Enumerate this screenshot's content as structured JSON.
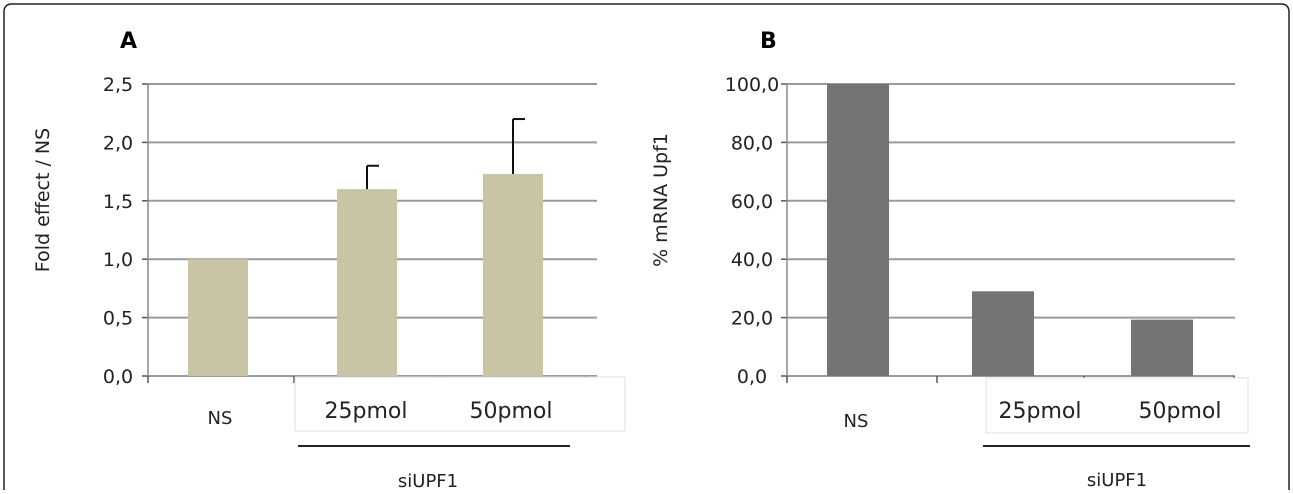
{
  "chart_data": [
    {
      "type": "bar",
      "panel_label": "A",
      "ylabel": "Fold  effect / NS",
      "categories": [
        "NS",
        "25pmol",
        "50pmol"
      ],
      "values": [
        1.0,
        1.6,
        1.73
      ],
      "error_upper": [
        0,
        0.2,
        0.47
      ],
      "ylim": [
        0,
        2.5
      ],
      "yticks": [
        0,
        0.5,
        1.0,
        1.5,
        2.0,
        2.5
      ],
      "ytick_labels": [
        "0,0",
        "0,5",
        "1,0",
        "1,5",
        "2,0",
        "2,5"
      ],
      "group_label": "siUPF1",
      "bar_color": "#c8c4a4",
      "grid": true
    },
    {
      "type": "bar",
      "panel_label": "B",
      "ylabel": "% mRNA Upf1",
      "categories": [
        "NS",
        "25pmol",
        "50pmol"
      ],
      "values": [
        100.0,
        29.0,
        19.3
      ],
      "ylim": [
        0,
        100
      ],
      "yticks": [
        0,
        20,
        40,
        60,
        80,
        100
      ],
      "ytick_labels": [
        "0,0",
        "20,0",
        "40,0",
        "60,0",
        "80,0",
        "100,0"
      ],
      "group_label": "siUPF1",
      "bar_color": "#747474",
      "grid": true
    }
  ]
}
